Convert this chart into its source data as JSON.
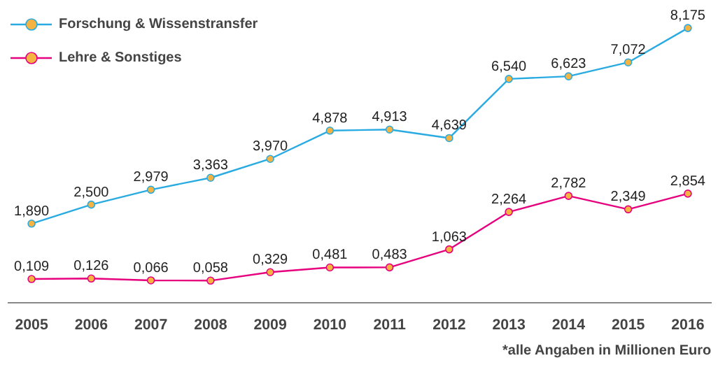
{
  "chart_data": {
    "type": "line",
    "categories": [
      "2005",
      "2006",
      "2007",
      "2008",
      "2009",
      "2010",
      "2011",
      "2012",
      "2013",
      "2014",
      "2015",
      "2016"
    ],
    "series": [
      {
        "name": "Forschung & Wissenstransfer",
        "color": "#29abe2",
        "values": [
          1.89,
          2.5,
          2.979,
          3.363,
          3.97,
          4.878,
          4.913,
          4.639,
          6.54,
          6.623,
          7.072,
          8.175
        ],
        "value_labels": [
          "1,890",
          "2,500",
          "2,979",
          "3,363",
          "3,970",
          "4,878",
          "4,913",
          "4,639",
          "6,540",
          "6,623",
          "7,072",
          "8,175"
        ]
      },
      {
        "name": "Lehre & Sonstiges",
        "color": "#e6007e",
        "values": [
          0.109,
          0.126,
          0.066,
          0.058,
          0.329,
          0.481,
          0.483,
          1.063,
          2.264,
          2.782,
          2.349,
          2.854
        ],
        "value_labels": [
          "0,109",
          "0,126",
          "0,066",
          "0,058",
          "0,329",
          "0,481",
          "0,483",
          "1,063",
          "2,264",
          "2,782",
          "2,349",
          "2,854"
        ]
      }
    ],
    "marker": "circle",
    "line_style": "solid",
    "legend": "top left",
    "grid": false,
    "annotations": [
      "*alle Angaben in Millionen Euro"
    ]
  }
}
